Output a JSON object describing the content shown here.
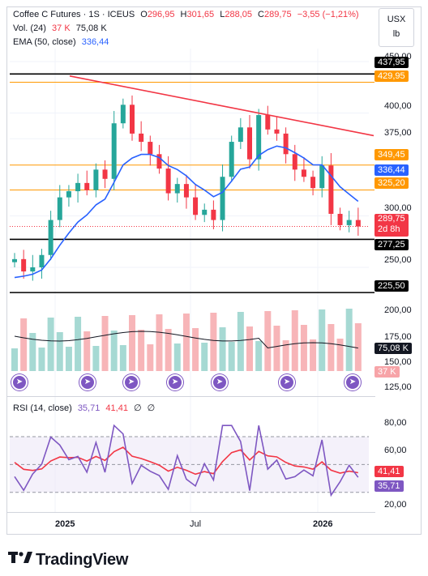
{
  "header": {
    "symbol": "Coffee C Futures · 1S · ICEUS",
    "open_label": "O",
    "open": "296,95",
    "high_label": "H",
    "high": "301,65",
    "low_label": "L",
    "low": "288,05",
    "close_label": "C",
    "close": "289,75",
    "change": "−3,55 (−1,21%)"
  },
  "volume_legend": {
    "label": "Vol. (24)",
    "value1": "37 K",
    "value2": "75,08 K"
  },
  "ema_legend": {
    "label": "EMA (50, close)",
    "value": "336,44"
  },
  "rsi_legend": {
    "label": "RSI (14, close)",
    "value1": "35,71",
    "value2": "41,41",
    "sym1": "∅",
    "sym2": "∅"
  },
  "currency": "USX",
  "unit": "lb",
  "price_ticks": [
    "450,00",
    "400,00",
    "375,00",
    "300,00",
    "250,00",
    "200,00",
    "175,00",
    "150,00",
    "125,00"
  ],
  "rsi_ticks": [
    "80,00",
    "60,00",
    "20,00"
  ],
  "x_labels": [
    "2025",
    "Jul",
    "2026"
  ],
  "price_tags": [
    {
      "name": "level-437",
      "text": "437,95",
      "bg": "#000000"
    },
    {
      "name": "level-429",
      "text": "429,95",
      "bg": "#ff9800"
    },
    {
      "name": "level-349",
      "text": "349,45",
      "bg": "#ff9800"
    },
    {
      "name": "ema-value",
      "text": "336,44",
      "bg": "#2962ff"
    },
    {
      "name": "level-325",
      "text": "325,20",
      "bg": "#ff9800"
    },
    {
      "name": "last-price",
      "text": "289,75",
      "text2": "2d 8h",
      "bg": "#f23645"
    },
    {
      "name": "level-277",
      "text": "277,25",
      "bg": "#000000"
    },
    {
      "name": "level-225",
      "text": "225,50",
      "bg": "#000000"
    },
    {
      "name": "vol-ma-value",
      "text": "75,08 K",
      "bg": "#131722"
    },
    {
      "name": "vol-value",
      "text": "37 K",
      "bg": "#f7a4a8"
    },
    {
      "name": "rsi-ma-value",
      "text": "41,41",
      "bg": "#f23645"
    },
    {
      "name": "rsi-value",
      "text": "35,71",
      "bg": "#7e57c2"
    }
  ],
  "brand": "TradingView",
  "colors": {
    "up": "#26a69a",
    "down": "#f23645",
    "ema": "#2962ff",
    "levels": "#ff9800",
    "rsi": "#7e57c2",
    "rsi_ma": "#f23645"
  },
  "chart_data": {
    "type": "candlestick",
    "ema": {
      "name": "EMA (50, close)"
    },
    "horizontal_levels": [
      437.95,
      429.95,
      349.45,
      325.2,
      277.25,
      225.5
    ],
    "ohlc_close_sample": [
      258,
      246,
      250,
      262,
      296,
      318,
      324,
      332,
      325,
      345,
      336,
      390,
      408,
      380,
      372,
      360,
      346,
      322,
      331,
      318,
      301,
      306,
      296,
      338,
      372,
      386,
      355,
      398,
      384,
      380,
      360,
      345,
      338,
      327,
      349,
      302,
      291,
      296,
      289.75
    ]
  }
}
